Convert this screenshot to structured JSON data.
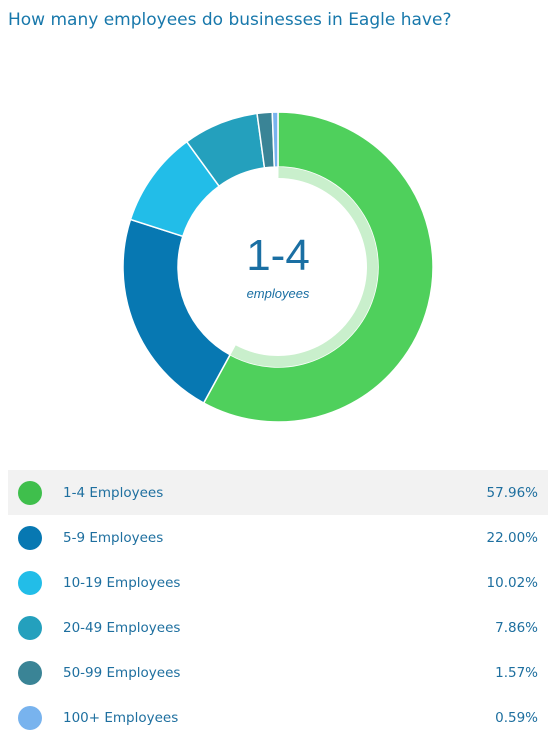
{
  "title": "How many employees do businesses in Eagle have?",
  "center": {
    "value": "1-4",
    "caption": "employees"
  },
  "chart_data": {
    "type": "pie",
    "title": "How many employees do businesses in Eagle have?",
    "categories": [
      "1-4 Employees",
      "5-9 Employees",
      "10-19 Employees",
      "20-49 Employees",
      "50-99 Employees",
      "100+ Employees"
    ],
    "values": [
      57.96,
      22.0,
      10.02,
      7.86,
      1.57,
      0.59
    ],
    "display_values": [
      "57.96%",
      "22.00%",
      "10.02%",
      "7.86%",
      "1.57%",
      "0.59%"
    ],
    "unit": "%",
    "colors": [
      "#4fd05c",
      "#0778b2",
      "#22bde8",
      "#24a0bd",
      "#3a8496",
      "#78b3ee"
    ],
    "legend_swatch_colors": [
      "#3fbf4c",
      "#0778b2",
      "#22bde8",
      "#24a0bd",
      "#3a8496",
      "#78b3ee"
    ],
    "highlighted_index": 0,
    "highlight_ring_color": "#c9efcc",
    "legend_position": "bottom"
  }
}
